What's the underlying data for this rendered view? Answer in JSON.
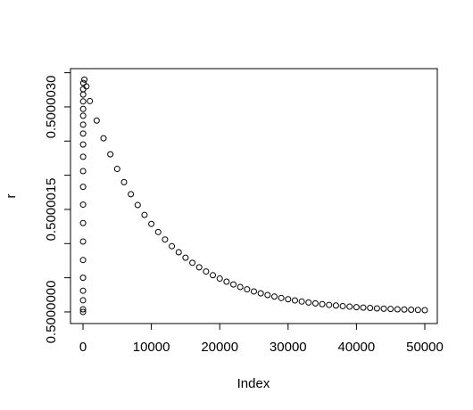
{
  "chart_data": {
    "type": "scatter",
    "xlabel": "Index",
    "ylabel": "r",
    "x": [
      1,
      2,
      3,
      4,
      5,
      6,
      7,
      8,
      9,
      10,
      11,
      12,
      13,
      14,
      15,
      16,
      17,
      18,
      19,
      20,
      50,
      200,
      500,
      1000,
      2000,
      3000,
      4000,
      5000,
      6000,
      7000,
      8000,
      9000,
      10000,
      11000,
      12000,
      13000,
      14000,
      15000,
      16000,
      17000,
      18000,
      19000,
      20000,
      21000,
      22000,
      23000,
      24000,
      25000,
      26000,
      27000,
      28000,
      29000,
      30000,
      31000,
      32000,
      33000,
      34000,
      35000,
      36000,
      37000,
      38000,
      39000,
      40000,
      41000,
      42000,
      43000,
      44000,
      45000,
      46000,
      47000,
      48000,
      49000,
      50000
    ],
    "values": [
      0.5,
      0.500000039,
      0.50000017,
      0.50000031,
      0.5000005,
      0.50000076,
      0.50000103,
      0.5000013,
      0.50000157,
      0.50000183,
      0.50000206,
      0.50000227,
      0.50000245,
      0.50000261,
      0.50000274,
      0.50000287,
      0.50000297,
      0.50000308,
      0.50000318,
      0.50000326,
      0.50000335,
      0.5000034,
      0.5000033,
      0.500003085,
      0.5000028,
      0.500002541,
      0.500002306,
      0.500002092,
      0.500001899,
      0.500001723,
      0.500001564,
      0.500001419,
      0.500001288,
      0.500001169,
      0.50000106,
      0.500000962,
      0.500000873,
      0.500000793,
      0.500000719,
      0.500000653,
      0.500000592,
      0.500000537,
      0.500000488,
      0.500000443,
      0.500000402,
      0.500000365,
      0.500000331,
      0.5000003,
      0.500000272,
      0.500000247,
      0.500000224,
      0.500000204,
      0.500000185,
      0.500000168,
      0.500000152,
      0.500000138,
      0.500000125,
      0.500000114,
      0.500000103,
      0.500000094,
      0.500000085,
      0.500000077,
      0.50000007,
      0.500000063,
      0.500000058,
      0.500000052,
      0.500000047,
      0.500000043,
      0.500000039,
      0.500000035,
      0.500000032,
      0.500000029,
      0.500000026
    ],
    "color": "#000000",
    "xlim": [
      -1830,
      51830
    ],
    "xticks": [
      0,
      10000,
      20000,
      30000,
      40000,
      50000
    ],
    "ylim": [
      0.49999983,
      0.50000356
    ],
    "yticks": [
      {
        "value": 0.5,
        "label": "0.5000000"
      },
      0.5000015,
      {
        "value": 0.500003,
        "label": "0.5000030"
      }
    ],
    "yticks_minor": [
      0.5000005,
      0.500001,
      0.500002,
      0.5000025,
      0.5000035
    ]
  }
}
